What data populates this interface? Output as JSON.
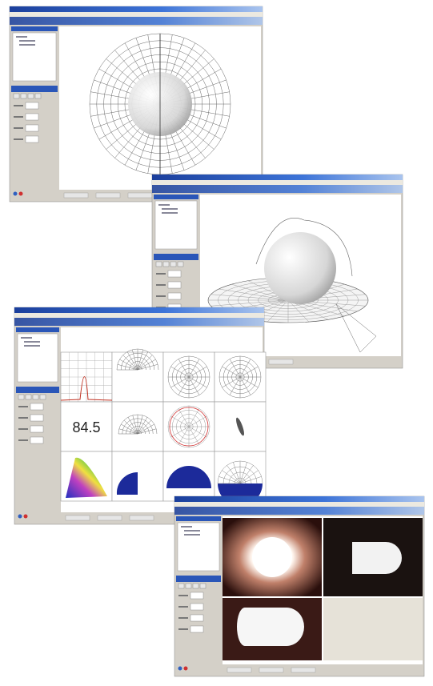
{
  "readout": "84.5"
}
